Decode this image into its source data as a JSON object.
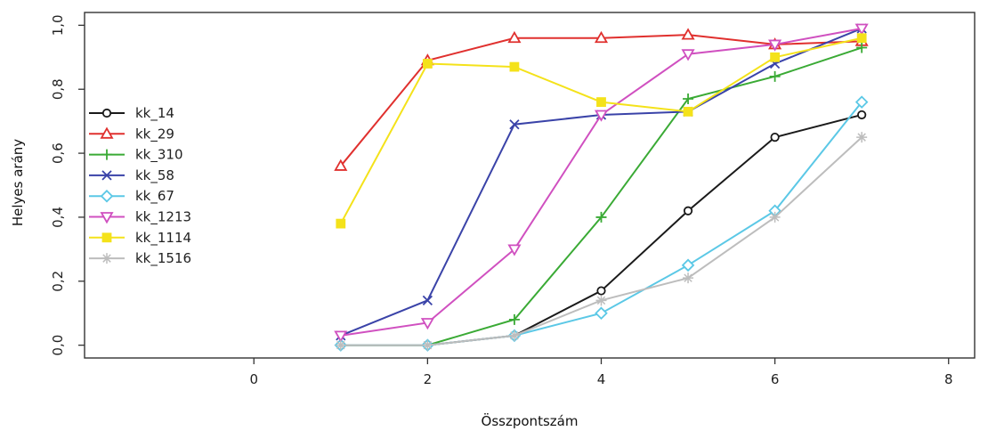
{
  "chart_data": {
    "type": "line",
    "xlabel": "Összpontszám",
    "ylabel": "Helyes arány",
    "xlim": [
      -1.95,
      8.3
    ],
    "ylim": [
      -0.04,
      1.04
    ],
    "x_ticks": [
      0,
      2,
      4,
      6,
      8
    ],
    "x_tick_labels": [
      "0",
      "2",
      "4",
      "6",
      "8"
    ],
    "y_ticks": [
      0.0,
      0.2,
      0.4,
      0.6,
      0.8,
      1.0
    ],
    "y_tick_labels": [
      "0,0",
      "0,2",
      "0,4",
      "0,6",
      "0,8",
      "1,0"
    ],
    "grid": false,
    "legend_position": "left",
    "x": [
      1,
      2,
      3,
      4,
      5,
      6,
      7
    ],
    "series": [
      {
        "name": "kk_14",
        "color": "#1a1a1a",
        "marker": "circle",
        "values": [
          0.0,
          0.0,
          0.03,
          0.17,
          0.42,
          0.65,
          0.72
        ]
      },
      {
        "name": "kk_29",
        "color": "#e0302e",
        "marker": "triangle-up",
        "values": [
          0.56,
          0.89,
          0.96,
          0.96,
          0.97,
          0.94,
          0.95
        ]
      },
      {
        "name": "kk_310",
        "color": "#3aaa35",
        "marker": "plus",
        "values": [
          0.0,
          0.0,
          0.08,
          0.4,
          0.77,
          0.84,
          0.93
        ]
      },
      {
        "name": "kk_58",
        "color": "#3a43a8",
        "marker": "cross",
        "values": [
          0.03,
          0.14,
          0.69,
          0.72,
          0.73,
          0.88,
          0.99
        ]
      },
      {
        "name": "kk_67",
        "color": "#5bc8e6",
        "marker": "diamond",
        "values": [
          0.0,
          0.0,
          0.03,
          0.1,
          0.25,
          0.42,
          0.76
        ]
      },
      {
        "name": "kk_1213",
        "color": "#d050c0",
        "marker": "triangle-down",
        "values": [
          0.03,
          0.07,
          0.3,
          0.72,
          0.91,
          0.94,
          0.99
        ]
      },
      {
        "name": "kk_1114",
        "color": "#f4e21a",
        "marker": "square",
        "values": [
          0.38,
          0.88,
          0.87,
          0.76,
          0.73,
          0.9,
          0.96
        ]
      },
      {
        "name": "kk_1516",
        "color": "#bdbdbd",
        "marker": "asterisk",
        "values": [
          0.0,
          0.0,
          0.03,
          0.14,
          0.21,
          0.4,
          0.65
        ]
      }
    ]
  }
}
